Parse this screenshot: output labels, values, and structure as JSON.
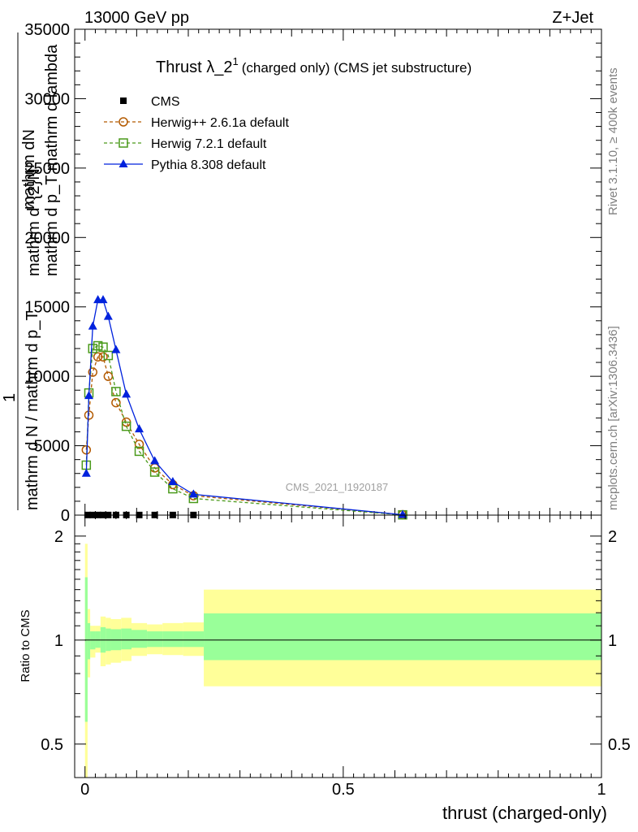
{
  "header": {
    "left": "13000 GeV pp",
    "right": "Z+Jet",
    "title_main": "Thrust λ_2",
    "title_sup": "1",
    "title_rest": "(charged only) (CMS jet substructure)",
    "watermark": "CMS_2021_I1920187"
  },
  "side": {
    "rivet": "Rivet 3.1.10, ≥ 400k events",
    "mcplots": "mcplots.cern.ch [arXiv:1306.3436]"
  },
  "colors": {
    "cms": "#000000",
    "herwigpp": "#b35a00",
    "herwig7": "#4a9a1a",
    "pythia": "#0022dd",
    "band_yellow": "#ffff99",
    "band_green": "#99ff99"
  },
  "chart_data": [
    {
      "type": "line",
      "panel": "main",
      "ylabel_1": "mathrm d^{2}N",
      "ylabel_2": "mathrm d p_T mathrm d lambda",
      "ylabel_num": "1",
      "ylabel_den": "mathrm d N / mathrm d p_T",
      "ylabel_frac_top": "mathrm dN",
      "yticks": [
        "0",
        "5000",
        "10000",
        "15000",
        "20000",
        "25000",
        "30000",
        "35000"
      ],
      "ytick_values": [
        0,
        5000,
        10000,
        15000,
        20000,
        25000,
        30000,
        35000
      ],
      "xlim": [
        -0.02,
        1.0
      ],
      "ylim": [
        0,
        35000
      ],
      "legend_position": "top-left",
      "series": [
        {
          "name": "CMS",
          "marker": "square",
          "x": [
            0.005,
            0.015,
            0.025,
            0.035,
            0.045,
            0.06,
            0.08,
            0.105,
            0.135,
            0.17,
            0.21
          ],
          "y": [
            10,
            10,
            10,
            10,
            10,
            10,
            10,
            10,
            10,
            10,
            10
          ]
        },
        {
          "name": "Herwig++ 2.6.1a default",
          "marker": "circle",
          "x": [
            0.0025,
            0.0075,
            0.015,
            0.025,
            0.035,
            0.045,
            0.06,
            0.08,
            0.105,
            0.135,
            0.17,
            0.21,
            0.615
          ],
          "y": [
            4700,
            7200,
            10300,
            11400,
            11400,
            10000,
            8100,
            6700,
            5100,
            3400,
            2200,
            1400,
            30
          ]
        },
        {
          "name": "Herwig 7.2.1 default",
          "marker": "open-square",
          "x": [
            0.0025,
            0.0075,
            0.015,
            0.025,
            0.035,
            0.045,
            0.06,
            0.08,
            0.105,
            0.135,
            0.17,
            0.21,
            0.615
          ],
          "y": [
            3600,
            8800,
            12000,
            12200,
            12100,
            11500,
            8900,
            6400,
            4600,
            3100,
            1900,
            1200,
            20
          ]
        },
        {
          "name": "Pythia 8.308 default",
          "marker": "triangle",
          "x": [
            0.0025,
            0.0075,
            0.015,
            0.025,
            0.035,
            0.045,
            0.06,
            0.08,
            0.105,
            0.135,
            0.17,
            0.21,
            0.615
          ],
          "y": [
            3000,
            8600,
            13600,
            15500,
            15500,
            14300,
            11900,
            8700,
            6200,
            3900,
            2400,
            1500,
            30
          ]
        }
      ]
    },
    {
      "type": "area",
      "panel": "ratio",
      "ylabel": "Ratio to CMS",
      "yticks": [
        "0.5",
        "1",
        "2"
      ],
      "ytick_values": [
        0.5,
        1,
        2
      ],
      "xticks": [
        "0",
        "0.5",
        "1"
      ],
      "xtick_values": [
        0,
        0.5,
        1
      ],
      "xlabel": "thrust (charged-only)",
      "xlim": [
        -0.02,
        1.0
      ],
      "ylim": [
        0.4,
        2.3
      ],
      "bands": {
        "edges": [
          0,
          0.005,
          0.01,
          0.02,
          0.03,
          0.04,
          0.05,
          0.07,
          0.09,
          0.12,
          0.15,
          0.19,
          0.23,
          1.0
        ],
        "yellow_low": [
          0.35,
          0.78,
          0.89,
          0.92,
          0.84,
          0.85,
          0.86,
          0.87,
          0.9,
          0.91,
          0.905,
          0.9,
          0.735
        ],
        "yellow_high": [
          1.9,
          1.23,
          1.1,
          1.1,
          1.17,
          1.16,
          1.15,
          1.16,
          1.12,
          1.11,
          1.12,
          1.125,
          1.4
        ],
        "green_low": [
          0.58,
          0.88,
          0.94,
          0.95,
          0.92,
          0.93,
          0.935,
          0.94,
          0.95,
          0.955,
          0.955,
          0.955,
          0.875
        ],
        "green_high": [
          1.52,
          1.12,
          1.06,
          1.06,
          1.09,
          1.08,
          1.075,
          1.08,
          1.07,
          1.06,
          1.06,
          1.06,
          1.195
        ]
      }
    }
  ]
}
